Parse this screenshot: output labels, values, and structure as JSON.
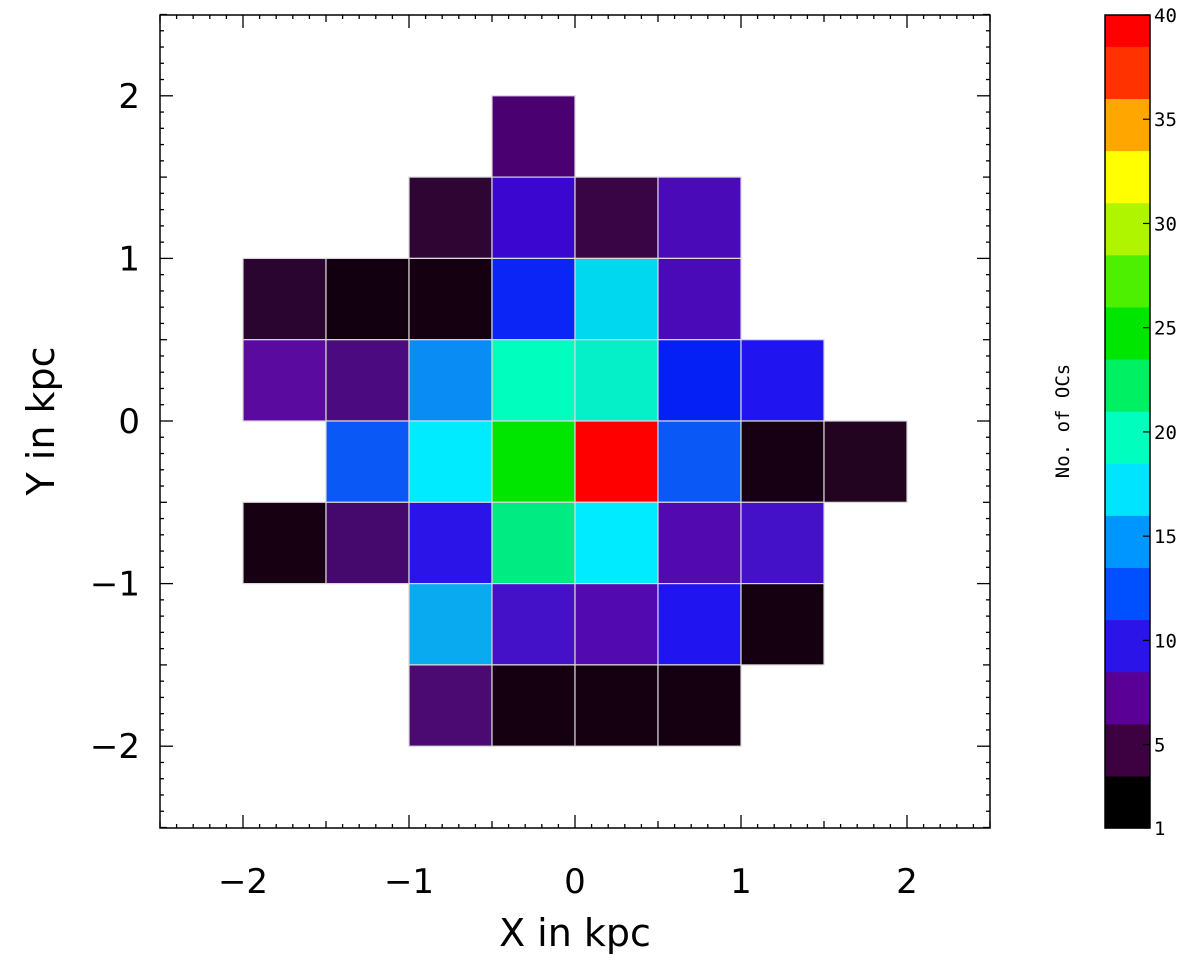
{
  "chart_data": {
    "type": "heatmap",
    "xlabel": "X in kpc",
    "ylabel": "Y in kpc",
    "xlim": [
      -2.5,
      2.5
    ],
    "ylim": [
      -2.5,
      2.5
    ],
    "xticks": [
      -2,
      -1,
      0,
      1,
      2
    ],
    "yticks": [
      -2,
      -1,
      0,
      1,
      2
    ],
    "xtick_labels": [
      "−2",
      "−1",
      "0",
      "1",
      "2"
    ],
    "ytick_labels": [
      "−2",
      "−1",
      "0",
      "1",
      "2"
    ],
    "bin_size": 0.5,
    "grid": false,
    "colorbar": {
      "title": "No. of OCs",
      "range": [
        1,
        40
      ],
      "levels": [
        {
          "lo": 1,
          "hi": 3.5,
          "color": "#000000"
        },
        {
          "lo": 3.5,
          "hi": 6,
          "color": "#3d0040"
        },
        {
          "lo": 6,
          "hi": 8.5,
          "color": "#5b0096"
        },
        {
          "lo": 8.5,
          "hi": 11,
          "color": "#2a14e8"
        },
        {
          "lo": 11,
          "hi": 13.5,
          "color": "#0050ff"
        },
        {
          "lo": 13.5,
          "hi": 16,
          "color": "#0096ff"
        },
        {
          "lo": 16,
          "hi": 18.5,
          "color": "#00e4ff"
        },
        {
          "lo": 18.5,
          "hi": 21,
          "color": "#00ffbe"
        },
        {
          "lo": 21,
          "hi": 23.5,
          "color": "#00f064"
        },
        {
          "lo": 23.5,
          "hi": 26,
          "color": "#00e600"
        },
        {
          "lo": 26,
          "hi": 28.5,
          "color": "#4cf000"
        },
        {
          "lo": 28.5,
          "hi": 31,
          "color": "#b0f500"
        },
        {
          "lo": 31,
          "hi": 33.5,
          "color": "#ffff00"
        },
        {
          "lo": 33.5,
          "hi": 36,
          "color": "#ffa600"
        },
        {
          "lo": 36,
          "hi": 38.5,
          "color": "#ff3200"
        },
        {
          "lo": 38.5,
          "hi": 40,
          "color": "#ff0000"
        }
      ],
      "tick_values": [
        1,
        5,
        10,
        15,
        20,
        25,
        30,
        35,
        40
      ],
      "tick_labels": [
        "1",
        "5",
        "10",
        "15",
        "20",
        "25",
        "30",
        "35",
        "40"
      ]
    },
    "cells": [
      {
        "x": -0.5,
        "y": 1.5,
        "count": 6,
        "color": "#4a0070"
      },
      {
        "x": -1.0,
        "y": 1.0,
        "count": 4,
        "color": "#2e0533"
      },
      {
        "x": -0.5,
        "y": 1.0,
        "count": 8,
        "color": "#3b06d0"
      },
      {
        "x": 0.0,
        "y": 1.0,
        "count": 4,
        "color": "#3a0545"
      },
      {
        "x": 0.5,
        "y": 1.0,
        "count": 8,
        "color": "#4a0ab8"
      },
      {
        "x": -2.0,
        "y": 0.5,
        "count": 3,
        "color": "#2a0530"
      },
      {
        "x": -1.5,
        "y": 0.5,
        "count": 1,
        "color": "#120010"
      },
      {
        "x": -1.0,
        "y": 0.5,
        "count": 1,
        "color": "#150012"
      },
      {
        "x": -0.5,
        "y": 0.5,
        "count": 11,
        "color": "#0a25f5"
      },
      {
        "x": 0.0,
        "y": 0.5,
        "count": 17,
        "color": "#00d8f0"
      },
      {
        "x": 0.5,
        "y": 0.5,
        "count": 7,
        "color": "#4a0ab8"
      },
      {
        "x": -2.0,
        "y": 0.0,
        "count": 6,
        "color": "#5a0a9e"
      },
      {
        "x": -1.5,
        "y": 0.0,
        "count": 6,
        "color": "#4c0a80"
      },
      {
        "x": -1.0,
        "y": 0.0,
        "count": 14,
        "color": "#0a8cf5"
      },
      {
        "x": -0.5,
        "y": 0.0,
        "count": 19,
        "color": "#00ffbe"
      },
      {
        "x": 0.0,
        "y": 0.0,
        "count": 19,
        "color": "#05f0c8"
      },
      {
        "x": 0.5,
        "y": 0.0,
        "count": 11,
        "color": "#0520f5"
      },
      {
        "x": 1.0,
        "y": 0.0,
        "count": 9,
        "color": "#2014f0"
      },
      {
        "x": -1.5,
        "y": -0.5,
        "count": 12,
        "color": "#0a58f5"
      },
      {
        "x": -1.0,
        "y": -0.5,
        "count": 17,
        "color": "#00ebff"
      },
      {
        "x": -0.5,
        "y": -0.5,
        "count": 24,
        "color": "#00e600"
      },
      {
        "x": 0.0,
        "y": -0.5,
        "count": 40,
        "color": "#ff0000"
      },
      {
        "x": 0.5,
        "y": -0.5,
        "count": 12,
        "color": "#0a58f5"
      },
      {
        "x": 1.0,
        "y": -0.5,
        "count": 1,
        "color": "#180014"
      },
      {
        "x": 1.5,
        "y": -0.5,
        "count": 2,
        "color": "#220420"
      },
      {
        "x": -2.0,
        "y": -1.0,
        "count": 1,
        "color": "#160012"
      },
      {
        "x": -1.5,
        "y": -1.0,
        "count": 5,
        "color": "#45096e"
      },
      {
        "x": -1.0,
        "y": -1.0,
        "count": 9,
        "color": "#2a14e8"
      },
      {
        "x": -0.5,
        "y": -1.0,
        "count": 22,
        "color": "#00ec82"
      },
      {
        "x": 0.0,
        "y": -1.0,
        "count": 17,
        "color": "#00ebff"
      },
      {
        "x": 0.5,
        "y": -1.0,
        "count": 7,
        "color": "#520ab0"
      },
      {
        "x": 1.0,
        "y": -1.0,
        "count": 8,
        "color": "#4410c8"
      },
      {
        "x": -1.0,
        "y": -1.5,
        "count": 14,
        "color": "#0aaaf0"
      },
      {
        "x": -0.5,
        "y": -1.5,
        "count": 8,
        "color": "#4410c8"
      },
      {
        "x": 0.0,
        "y": -1.5,
        "count": 7,
        "color": "#520ab0"
      },
      {
        "x": 0.5,
        "y": -1.5,
        "count": 9,
        "color": "#2014f0"
      },
      {
        "x": 1.0,
        "y": -1.5,
        "count": 1,
        "color": "#140010"
      },
      {
        "x": -1.0,
        "y": -2.0,
        "count": 5,
        "color": "#4a0a72"
      },
      {
        "x": -0.5,
        "y": -2.0,
        "count": 1,
        "color": "#140010"
      },
      {
        "x": 0.0,
        "y": -2.0,
        "count": 1,
        "color": "#140010"
      },
      {
        "x": 0.5,
        "y": -2.0,
        "count": 1,
        "color": "#140010"
      }
    ]
  }
}
